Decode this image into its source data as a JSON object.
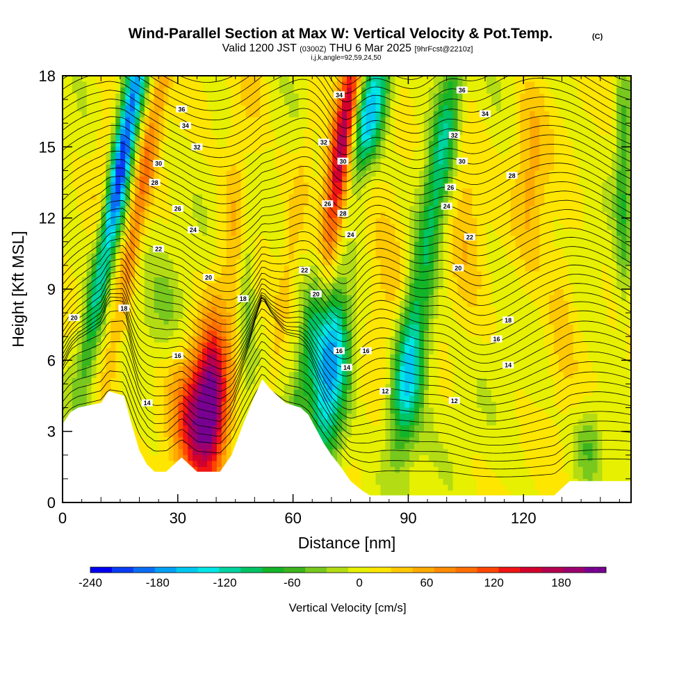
{
  "header": {
    "title": "Wind-Parallel Section at Max W: Vertical Velocity & Pot.Temp.",
    "title_units": "(C)",
    "valid_a": "Valid 1200 JST",
    "valid_utc": "(0300Z)",
    "valid_b": "THU 6 Mar 2025",
    "forecast": "[9hrFcst@2210z]",
    "params": "i,j,k,angle=92,59,24,50"
  },
  "chart_data": {
    "type": "heatmap",
    "xlabel": "Distance [nm]",
    "ylabel": "Height [Kft MSL]",
    "xlim": [
      0,
      148
    ],
    "ylim": [
      0,
      18
    ],
    "x_ticks": [
      0,
      30,
      60,
      90,
      120
    ],
    "x_tick_labels": [
      "0",
      "30",
      "60",
      "90",
      "120"
    ],
    "y_ticks": [
      0,
      3,
      6,
      9,
      12,
      15,
      18
    ],
    "y_tick_labels": [
      "0",
      "3",
      "6",
      "9",
      "12",
      "15",
      "18"
    ],
    "colorbar": {
      "label": "Vertical Velocity [cm/s]",
      "range": [
        -240,
        220
      ],
      "step": 20,
      "tick_values": [
        -240,
        -180,
        -120,
        -60,
        0,
        60,
        120,
        180
      ],
      "tick_labels": [
        "-240",
        "-180",
        "-120",
        "-60",
        "0",
        "60",
        "120",
        "180"
      ],
      "colors": [
        "#0000f0",
        "#0a3cf5",
        "#0a6ef5",
        "#00a0f5",
        "#00c8f0",
        "#00e6e6",
        "#00d2a0",
        "#00c364",
        "#14b428",
        "#3cb41e",
        "#78c81e",
        "#b4dc14",
        "#e6f000",
        "#ffe600",
        "#ffc800",
        "#ffaa00",
        "#ff8c00",
        "#ff6e00",
        "#ff4600",
        "#f01414",
        "#d2002d",
        "#b40050",
        "#9b006e",
        "#780090"
      ]
    },
    "terrain_kft": [
      [
        0,
        3.3
      ],
      [
        2,
        3.8
      ],
      [
        4,
        4.0
      ],
      [
        10,
        4.2
      ],
      [
        12,
        4.7
      ],
      [
        16,
        4.5
      ],
      [
        18,
        3.3
      ],
      [
        20,
        2.2
      ],
      [
        22,
        1.6
      ],
      [
        24,
        1.3
      ],
      [
        27,
        1.3
      ],
      [
        29,
        1.6
      ],
      [
        31,
        1.9
      ],
      [
        33,
        1.6
      ],
      [
        35,
        1.3
      ],
      [
        41,
        1.3
      ],
      [
        44,
        2.0
      ],
      [
        47,
        3.3
      ],
      [
        50,
        4.5
      ],
      [
        52,
        5.2
      ],
      [
        54,
        4.8
      ],
      [
        56,
        4.5
      ],
      [
        58,
        4.2
      ],
      [
        62,
        4.0
      ],
      [
        64,
        3.7
      ],
      [
        66,
        3.1
      ],
      [
        68,
        2.5
      ],
      [
        70,
        2.0
      ],
      [
        72,
        1.6
      ],
      [
        75,
        0.9
      ],
      [
        78,
        0.5
      ],
      [
        80,
        0.3
      ],
      [
        82,
        0.3
      ],
      [
        100,
        0.3
      ],
      [
        118,
        0.3
      ],
      [
        128,
        0.3
      ],
      [
        132,
        0.9
      ],
      [
        148,
        0.9
      ]
    ],
    "vertical_velocity_features": [
      {
        "x": 15.0,
        "y": 14.0,
        "sx": 2.0,
        "sy": 5.0,
        "tilt": 0.18,
        "w": -240
      },
      {
        "x": 20.5,
        "y": 13.0,
        "sx": 1.8,
        "sy": 5.5,
        "tilt": 0.18,
        "w": 80
      },
      {
        "x": 36.0,
        "y": 3.4,
        "sx": 4.5,
        "sy": 2.0,
        "tilt": 0,
        "w": 190
      },
      {
        "x": 39.0,
        "y": 5.0,
        "sx": 2.5,
        "sy": 2.0,
        "tilt": 0,
        "w": 100
      },
      {
        "x": 66.0,
        "y": 9.0,
        "sx": 1.8,
        "sy": 7.0,
        "tilt": 0.15,
        "w": -80
      },
      {
        "x": 68.0,
        "y": 5.0,
        "sx": 3.0,
        "sy": 3.0,
        "tilt": 0,
        "w": -150
      },
      {
        "x": 72.0,
        "y": 6.5,
        "sx": 2.5,
        "sy": 2.0,
        "tilt": 0,
        "w": -90
      },
      {
        "x": 72.5,
        "y": 15.0,
        "sx": 2.2,
        "sy": 4.5,
        "tilt": 0.15,
        "w": 230
      },
      {
        "x": 80.0,
        "y": 16.5,
        "sx": 3.0,
        "sy": 2.0,
        "tilt": 0.2,
        "w": -180
      },
      {
        "x": 90.0,
        "y": 5.5,
        "sx": 3.0,
        "sy": 2.4,
        "tilt": 0.1,
        "w": -160
      },
      {
        "x": 98.5,
        "y": 14.5,
        "sx": 2.5,
        "sy": 4.5,
        "tilt": 0.15,
        "w": -110
      },
      {
        "x": 105.0,
        "y": 12.5,
        "sx": 3.0,
        "sy": 3.0,
        "tilt": 0,
        "w": 40
      },
      {
        "x": 46.0,
        "y": 13.0,
        "sx": 3.0,
        "sy": 5.0,
        "tilt": 0.1,
        "w": 50
      },
      {
        "x": 85.0,
        "y": 9.5,
        "sx": 4.0,
        "sy": 3.0,
        "tilt": 0,
        "w": 40
      },
      {
        "x": 58.0,
        "y": 9.0,
        "sx": 1.5,
        "sy": 7.0,
        "tilt": 0.15,
        "w": 30
      },
      {
        "x": 48.0,
        "y": 9.5,
        "sx": 1.6,
        "sy": 4.0,
        "tilt": 0,
        "w": -50
      },
      {
        "x": 137.0,
        "y": 2.5,
        "sx": 2.5,
        "sy": 1.2,
        "tilt": 0,
        "w": -60
      },
      {
        "x": 146.0,
        "y": 14.0,
        "sx": 1.5,
        "sy": 4.0,
        "tilt": 0,
        "w": -70
      },
      {
        "x": 26.0,
        "y": 8.0,
        "sx": 4.0,
        "sy": 1.5,
        "tilt": 0,
        "w": -30
      },
      {
        "x": 122.0,
        "y": 14.0,
        "sx": 3.0,
        "sy": 3.0,
        "tilt": 0,
        "w": 50
      },
      {
        "x": 11.0,
        "y": 12.0,
        "sx": 2.0,
        "sy": 4.0,
        "tilt": 0,
        "w": 40
      },
      {
        "x": 130.0,
        "y": 8.0,
        "sx": 3.0,
        "sy": 2.5,
        "tilt": 0,
        "w": 35
      }
    ],
    "theta_contour_labels": [
      {
        "x": 31,
        "y": 16.6,
        "text": "36"
      },
      {
        "x": 32,
        "y": 15.9,
        "text": "34"
      },
      {
        "x": 35,
        "y": 15.0,
        "text": "32"
      },
      {
        "x": 25,
        "y": 14.3,
        "text": "30"
      },
      {
        "x": 24,
        "y": 13.5,
        "text": "28"
      },
      {
        "x": 30,
        "y": 12.4,
        "text": "26"
      },
      {
        "x": 34,
        "y": 11.5,
        "text": "24"
      },
      {
        "x": 25,
        "y": 10.7,
        "text": "22"
      },
      {
        "x": 38,
        "y": 9.5,
        "text": "20"
      },
      {
        "x": 3,
        "y": 7.8,
        "text": "20"
      },
      {
        "x": 16,
        "y": 8.2,
        "text": "18"
      },
      {
        "x": 47,
        "y": 8.6,
        "text": "18"
      },
      {
        "x": 30,
        "y": 6.2,
        "text": "16"
      },
      {
        "x": 22,
        "y": 4.2,
        "text": "14"
      },
      {
        "x": 72,
        "y": 17.2,
        "text": "34"
      },
      {
        "x": 68,
        "y": 15.2,
        "text": "32"
      },
      {
        "x": 73,
        "y": 14.4,
        "text": "30"
      },
      {
        "x": 69,
        "y": 12.6,
        "text": "26"
      },
      {
        "x": 73,
        "y": 12.2,
        "text": "28"
      },
      {
        "x": 75,
        "y": 11.3,
        "text": "24"
      },
      {
        "x": 63,
        "y": 9.8,
        "text": "22"
      },
      {
        "x": 66,
        "y": 8.8,
        "text": "20"
      },
      {
        "x": 72,
        "y": 6.4,
        "text": "16"
      },
      {
        "x": 79,
        "y": 6.4,
        "text": "16"
      },
      {
        "x": 74,
        "y": 5.7,
        "text": "14"
      },
      {
        "x": 84,
        "y": 4.7,
        "text": "12"
      },
      {
        "x": 104,
        "y": 17.4,
        "text": "36"
      },
      {
        "x": 110,
        "y": 16.4,
        "text": "34"
      },
      {
        "x": 102,
        "y": 15.5,
        "text": "32"
      },
      {
        "x": 104,
        "y": 14.4,
        "text": "30"
      },
      {
        "x": 117,
        "y": 13.8,
        "text": "28"
      },
      {
        "x": 101,
        "y": 13.3,
        "text": "26"
      },
      {
        "x": 100,
        "y": 12.5,
        "text": "24"
      },
      {
        "x": 106,
        "y": 11.2,
        "text": "22"
      },
      {
        "x": 103,
        "y": 9.9,
        "text": "20"
      },
      {
        "x": 116,
        "y": 7.7,
        "text": "18"
      },
      {
        "x": 113,
        "y": 6.9,
        "text": "16"
      },
      {
        "x": 116,
        "y": 5.8,
        "text": "14"
      },
      {
        "x": 102,
        "y": 4.3,
        "text": "12"
      }
    ]
  }
}
